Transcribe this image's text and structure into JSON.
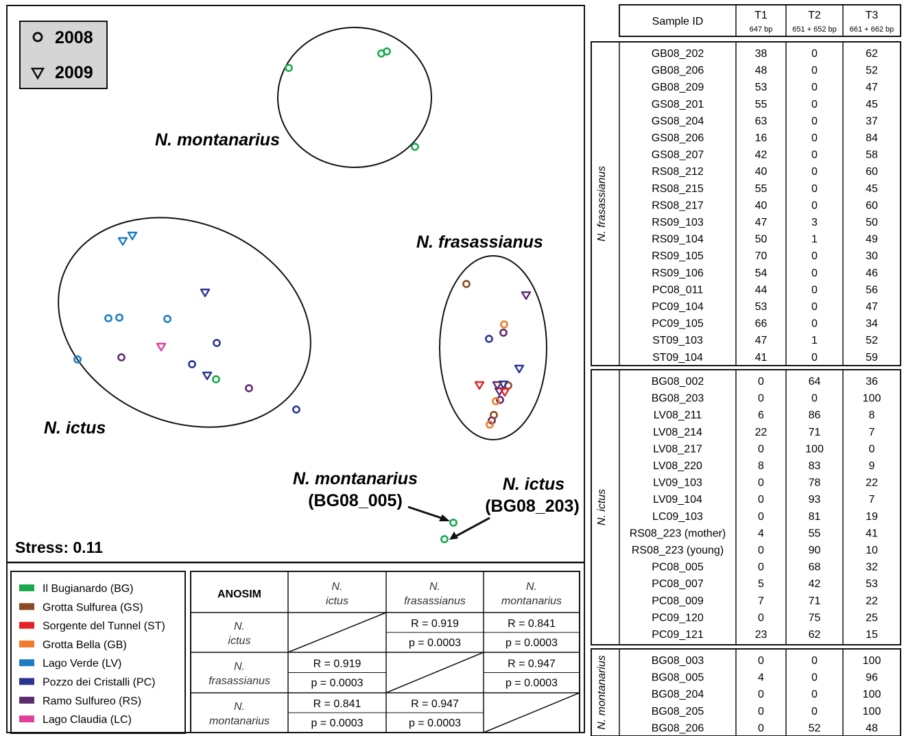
{
  "plot": {
    "legend_years": [
      {
        "marker": "circle",
        "label": "2008"
      },
      {
        "marker": "triangle-down",
        "label": "2009"
      }
    ],
    "clusters": [
      {
        "name": "N. montanarius"
      },
      {
        "name": "N. frasassianus"
      },
      {
        "name": "N. ictus"
      }
    ],
    "callouts": [
      {
        "line1": "N. montanarius",
        "line2": "(BG08_005)"
      },
      {
        "line1": "N. ictus",
        "line2": "(BG08_203)"
      }
    ],
    "stress": "Stress: 0.11"
  },
  "site_legend": [
    {
      "label": "Il Bugianardo (BG)",
      "color": "#19a84c"
    },
    {
      "label": "Grotta Sulfurea (GS)",
      "color": "#8b4a26"
    },
    {
      "label": "Sorgente del Tunnel (ST)",
      "color": "#e32227"
    },
    {
      "label": "Grotta Bella (GB)",
      "color": "#f07b28"
    },
    {
      "label": "Lago Verde (LV)",
      "color": "#1c7cc4"
    },
    {
      "label": "Pozzo dei Cristalli (PC)",
      "color": "#2b3590"
    },
    {
      "label": "Ramo Sulfureo (RS)",
      "color": "#5e2a6e"
    },
    {
      "label": "Lago Claudia (LC)",
      "color": "#e0409b"
    }
  ],
  "anosim": {
    "corner": "ANOSIM",
    "col_headers": [
      [
        "N.",
        "ictus"
      ],
      [
        "N.",
        "frasassianus"
      ],
      [
        "N.",
        "montanarius"
      ]
    ],
    "row_headers": [
      [
        "N.",
        "ictus"
      ],
      [
        "N.",
        "frasassianus"
      ],
      [
        "N.",
        "montanarius"
      ]
    ],
    "cells": [
      [
        null,
        [
          "R = 0.919",
          "p = 0.0003"
        ],
        [
          "R = 0.841",
          "p = 0.0003"
        ]
      ],
      [
        [
          "R = 0.919",
          "p = 0.0003"
        ],
        null,
        [
          "R = 0.947",
          "p = 0.0003"
        ]
      ],
      [
        [
          "R = 0.841",
          "p = 0.0003"
        ],
        [
          "R = 0.947",
          "p = 0.0003"
        ],
        null
      ]
    ]
  },
  "table": {
    "headers": [
      {
        "main": "Sample ID",
        "sub": ""
      },
      {
        "main": "T1",
        "sub": "647 bp"
      },
      {
        "main": "T2",
        "sub": "651 + 652 bp"
      },
      {
        "main": "T3",
        "sub": "661 + 662 bp"
      }
    ],
    "groups": [
      {
        "name": "N. frasassianus",
        "rows": [
          [
            "GB08_202",
            "38",
            "0",
            "62"
          ],
          [
            "GB08_206",
            "48",
            "0",
            "52"
          ],
          [
            "GB08_209",
            "53",
            "0",
            "47"
          ],
          [
            "GS08_201",
            "55",
            "0",
            "45"
          ],
          [
            "GS08_204",
            "63",
            "0",
            "37"
          ],
          [
            "GS08_206",
            "16",
            "0",
            "84"
          ],
          [
            "GS08_207",
            "42",
            "0",
            "58"
          ],
          [
            "RS08_212",
            "40",
            "0",
            "60"
          ],
          [
            "RS08_215",
            "55",
            "0",
            "45"
          ],
          [
            "RS08_217",
            "40",
            "0",
            "60"
          ],
          [
            "RS09_103",
            "47",
            "3",
            "50"
          ],
          [
            "RS09_104",
            "50",
            "1",
            "49"
          ],
          [
            "RS09_105",
            "70",
            "0",
            "30"
          ],
          [
            "RS09_106",
            "54",
            "0",
            "46"
          ],
          [
            "PC08_011",
            "44",
            "0",
            "56"
          ],
          [
            "PC09_104",
            "53",
            "0",
            "47"
          ],
          [
            "PC09_105",
            "66",
            "0",
            "34"
          ],
          [
            "ST09_103",
            "47",
            "1",
            "52"
          ],
          [
            "ST09_104",
            "41",
            "0",
            "59"
          ]
        ]
      },
      {
        "name": "N. ictus",
        "rows": [
          [
            "BG08_002",
            "0",
            "64",
            "36"
          ],
          [
            "BG08_203",
            "0",
            "0",
            "100"
          ],
          [
            "LV08_211",
            "6",
            "86",
            "8"
          ],
          [
            "LV08_214",
            "22",
            "71",
            "7"
          ],
          [
            "LV08_217",
            "0",
            "100",
            "0"
          ],
          [
            "LV08_220",
            "8",
            "83",
            "9"
          ],
          [
            "LV09_103",
            "0",
            "78",
            "22"
          ],
          [
            "LV09_104",
            "0",
            "93",
            "7"
          ],
          [
            "LC09_103",
            "0",
            "81",
            "19"
          ],
          [
            "RS08_223 (mother)",
            "4",
            "55",
            "41"
          ],
          [
            "RS08_223 (young)",
            "0",
            "90",
            "10"
          ],
          [
            "PC08_005",
            "0",
            "68",
            "32"
          ],
          [
            "PC08_007",
            "5",
            "42",
            "53"
          ],
          [
            "PC08_009",
            "7",
            "71",
            "22"
          ],
          [
            "PC09_120",
            "0",
            "75",
            "25"
          ],
          [
            "PC09_121",
            "23",
            "62",
            "15"
          ]
        ]
      },
      {
        "name": "N. montanarius",
        "rows": [
          [
            "BG08_003",
            "0",
            "0",
            "100"
          ],
          [
            "BG08_005",
            "4",
            "0",
            "96"
          ],
          [
            "BG08_204",
            "0",
            "0",
            "100"
          ],
          [
            "BG08_205",
            "0",
            "0",
            "100"
          ],
          [
            "BG08_206",
            "0",
            "52",
            "48"
          ]
        ]
      }
    ]
  },
  "chart_data": {
    "type": "scatter",
    "title": "",
    "xlabel": "",
    "ylabel": "",
    "stress": 0.11,
    "series": [
      {
        "name": "2008",
        "marker": "circle",
        "points": [
          {
            "site": "BG",
            "x": 421,
            "y": 99
          },
          {
            "site": "BG",
            "x": 556,
            "y": 78
          },
          {
            "site": "BG",
            "x": 564,
            "y": 75
          },
          {
            "site": "BG",
            "x": 605,
            "y": 214
          },
          {
            "site": "BG",
            "x": 315,
            "y": 553
          },
          {
            "site": "BG",
            "x": 661,
            "y": 762
          },
          {
            "site": "BG",
            "x": 648,
            "y": 786
          },
          {
            "site": "LV",
            "x": 158,
            "y": 464
          },
          {
            "site": "LV",
            "x": 174,
            "y": 463
          },
          {
            "site": "LV",
            "x": 244,
            "y": 465
          },
          {
            "site": "LV",
            "x": 113,
            "y": 524
          },
          {
            "site": "PC",
            "x": 316,
            "y": 500
          },
          {
            "site": "PC",
            "x": 280,
            "y": 531
          },
          {
            "site": "PC",
            "x": 432,
            "y": 597
          },
          {
            "site": "PC",
            "x": 713,
            "y": 494
          },
          {
            "site": "RS",
            "x": 177,
            "y": 521
          },
          {
            "site": "RS",
            "x": 363,
            "y": 566
          },
          {
            "site": "RS",
            "x": 734,
            "y": 485
          },
          {
            "site": "RS",
            "x": 729,
            "y": 583
          },
          {
            "site": "RS",
            "x": 717,
            "y": 613
          },
          {
            "site": "GS",
            "x": 680,
            "y": 414
          },
          {
            "site": "GS",
            "x": 741,
            "y": 562
          },
          {
            "site": "GS",
            "x": 720,
            "y": 605
          },
          {
            "site": "GB",
            "x": 735,
            "y": 473
          },
          {
            "site": "GB",
            "x": 723,
            "y": 585
          },
          {
            "site": "GB",
            "x": 714,
            "y": 619
          }
        ]
      },
      {
        "name": "2009",
        "marker": "triangle-down",
        "points": [
          {
            "site": "LV",
            "x": 179,
            "y": 352
          },
          {
            "site": "LV",
            "x": 193,
            "y": 344
          },
          {
            "site": "PC",
            "x": 299,
            "y": 427
          },
          {
            "site": "PC",
            "x": 302,
            "y": 548
          },
          {
            "site": "PC",
            "x": 757,
            "y": 538
          },
          {
            "site": "PC",
            "x": 734,
            "y": 561
          },
          {
            "site": "LC",
            "x": 235,
            "y": 506
          },
          {
            "site": "RS",
            "x": 767,
            "y": 431
          },
          {
            "site": "RS",
            "x": 725,
            "y": 562
          },
          {
            "site": "RS",
            "x": 728,
            "y": 571
          },
          {
            "site": "ST",
            "x": 699,
            "y": 562
          },
          {
            "site": "ST",
            "x": 736,
            "y": 572
          }
        ]
      }
    ]
  }
}
